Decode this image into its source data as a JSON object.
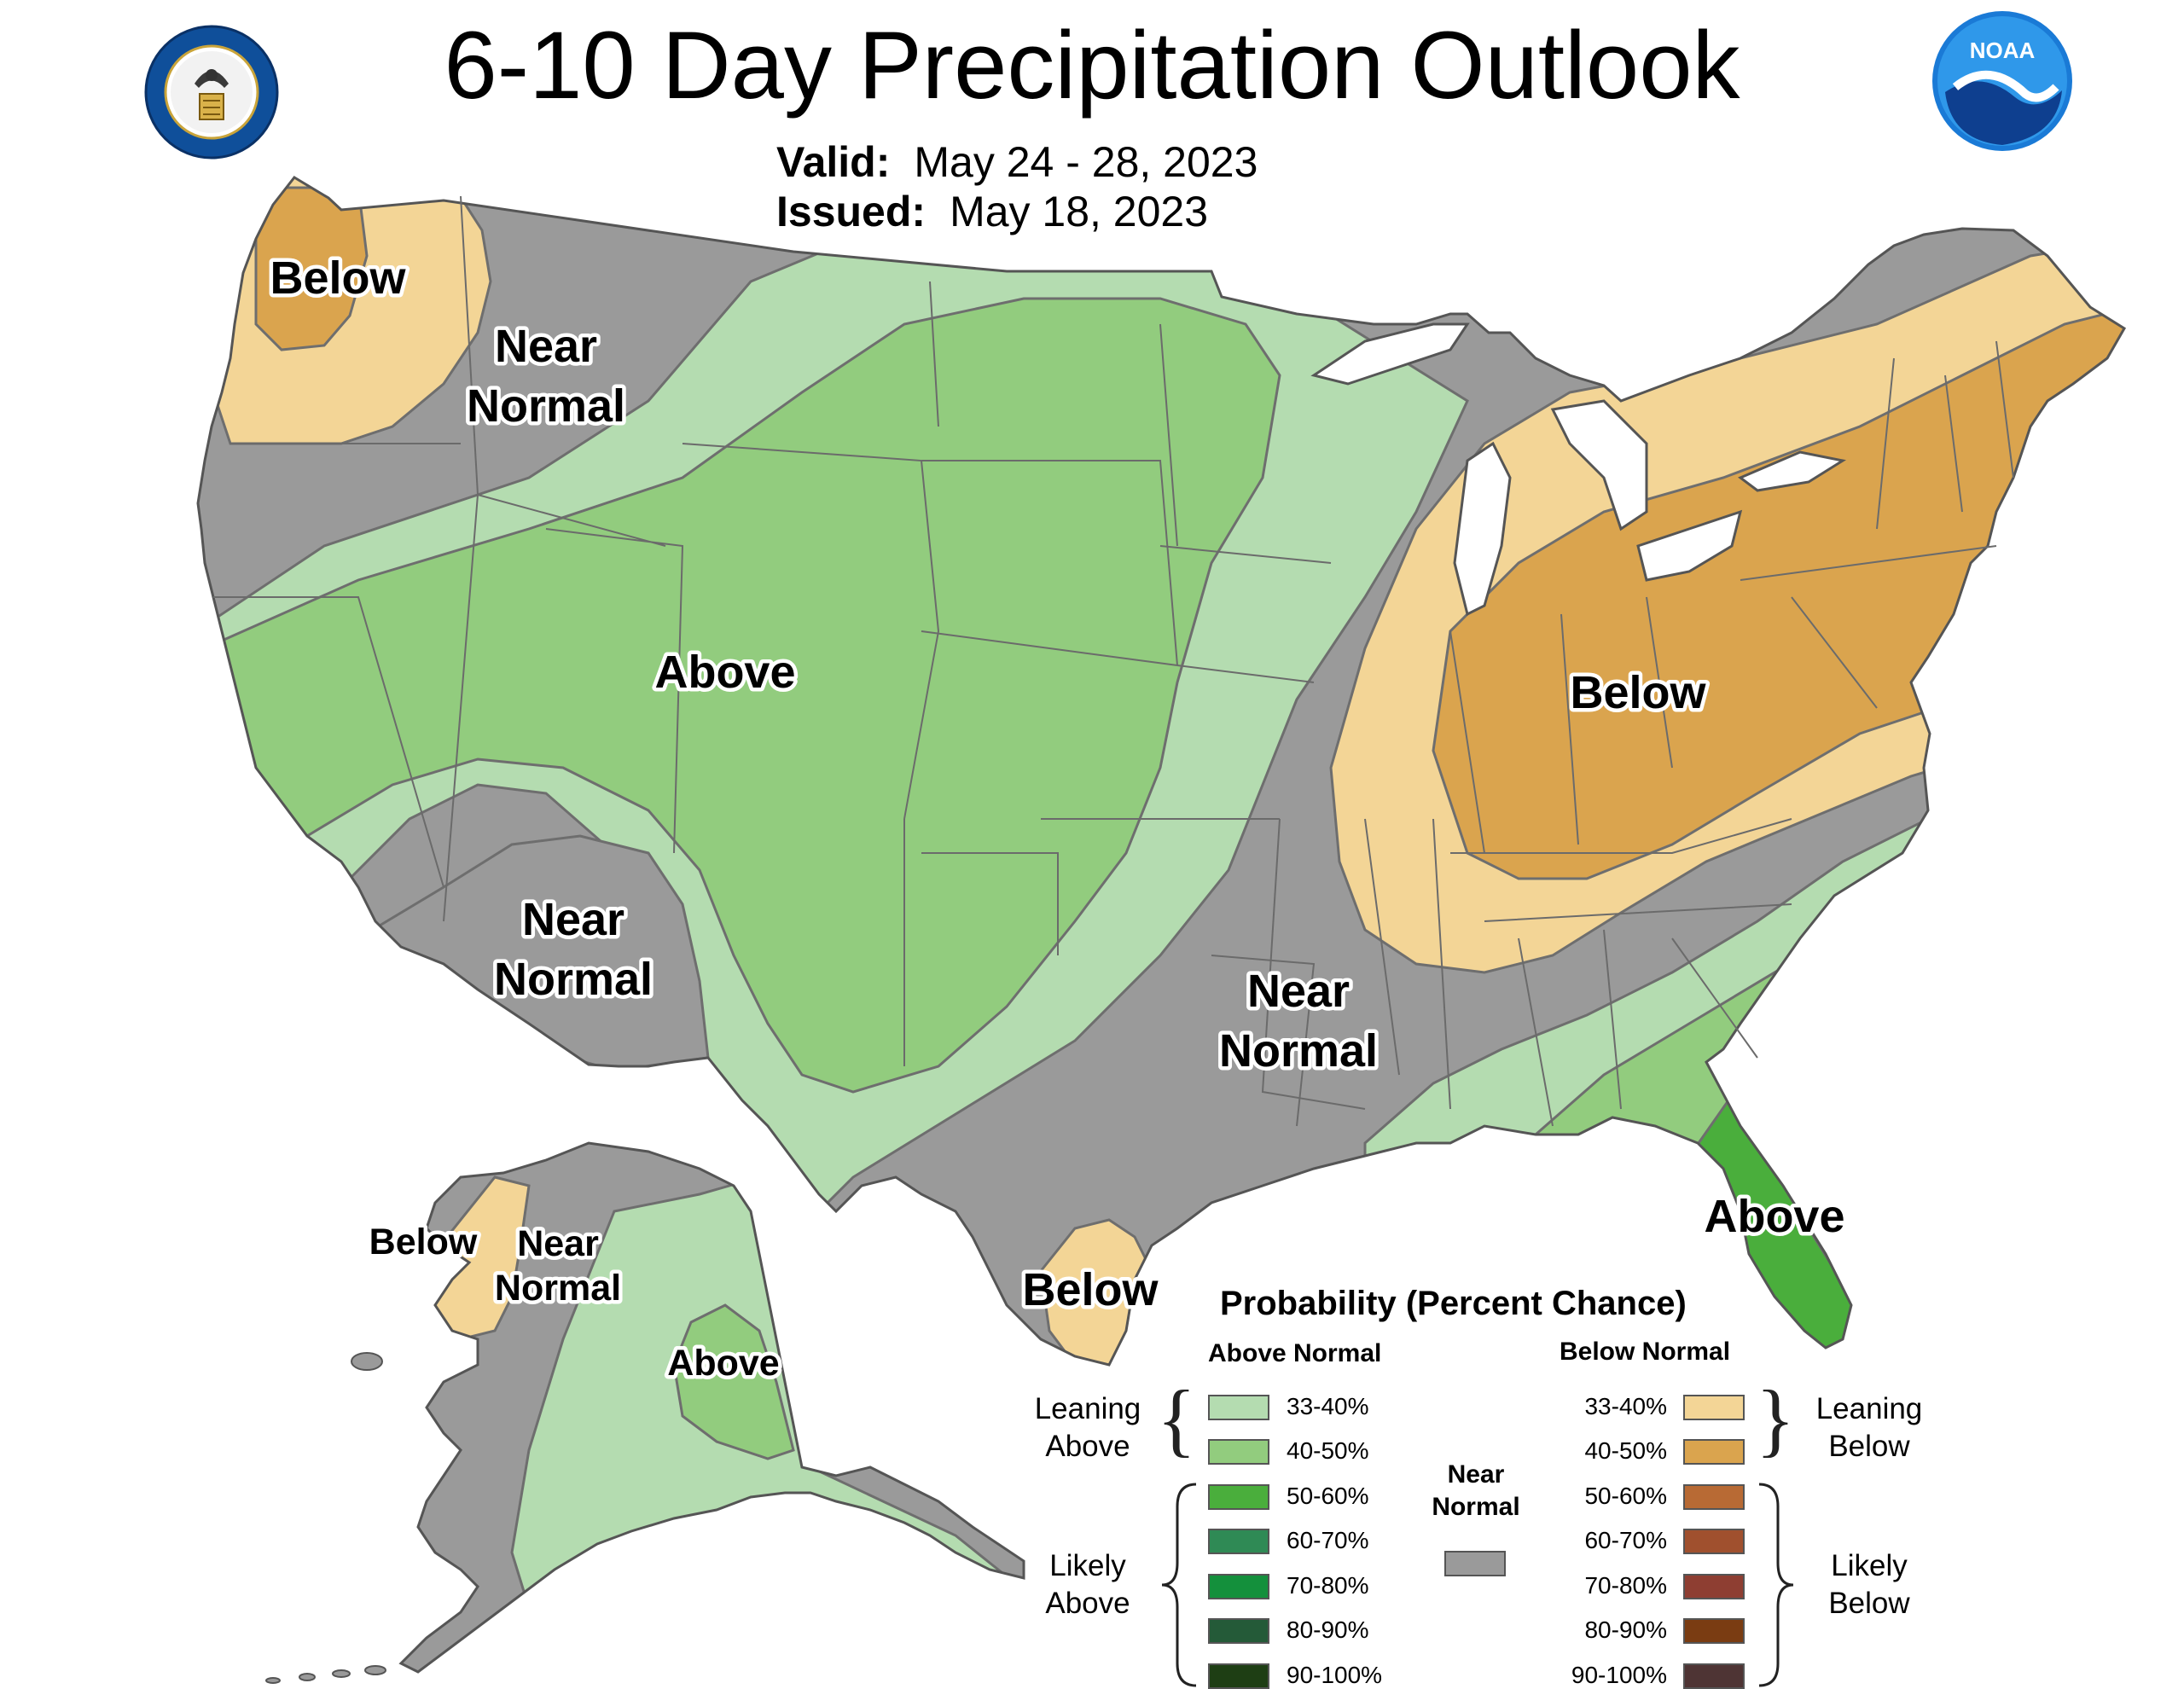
{
  "title": "6-10 Day Precipitation Outlook",
  "valid_label": "Valid:",
  "valid_dates": "May 24 - 28, 2023",
  "issued_label": "Issued:",
  "issued_date": "May 18, 2023",
  "logos": {
    "left": {
      "name": "department-of-commerce-seal",
      "text": "DEPARTMENT OF COMMERCE · UNITED STATES OF AMERICA"
    },
    "right": {
      "name": "noaa-logo",
      "text": "NOAA"
    }
  },
  "colors": {
    "leaning_above": "#b4dcb0",
    "above_40_50": "#92cc7e",
    "above_50_60": "#4aae3c",
    "near_normal": "#9a9a9a",
    "leaning_below": "#f3d596",
    "below_40_50": "#daa44e"
  },
  "map_labels": {
    "nw_below": "Below",
    "nw_near_1": "Near",
    "nw_near_2": "Normal",
    "west_above": "Above",
    "sw_near_1": "Near",
    "sw_near_2": "Normal",
    "south_near_1": "Near",
    "south_near_2": "Normal",
    "east_below": "Below",
    "texas_below": "Below",
    "florida_above": "Above",
    "ak_below": "Below",
    "ak_near_1": "Near",
    "ak_near_2": "Normal",
    "ak_above": "Above"
  },
  "legend": {
    "title": "Probability (Percent Chance)",
    "above_header": "Above Normal",
    "below_header": "Below Normal",
    "near_label_1": "Near",
    "near_label_2": "Normal",
    "leaning_above_1": "Leaning",
    "leaning_above_2": "Above",
    "likely_above_1": "Likely",
    "likely_above_2": "Above",
    "leaning_below_1": "Leaning",
    "leaning_below_2": "Below",
    "likely_below_1": "Likely",
    "likely_below_2": "Below",
    "above_items": [
      {
        "label": "33-40%",
        "color": "#b4dcb0"
      },
      {
        "label": "40-50%",
        "color": "#92cc7e"
      },
      {
        "label": "50-60%",
        "color": "#4aae3c"
      },
      {
        "label": "60-70%",
        "color": "#2f8a55"
      },
      {
        "label": "70-80%",
        "color": "#14903c"
      },
      {
        "label": "80-90%",
        "color": "#245a38"
      },
      {
        "label": "90-100%",
        "color": "#1e3e14"
      }
    ],
    "below_items": [
      {
        "label": "33-40%",
        "color": "#f3d596"
      },
      {
        "label": "40-50%",
        "color": "#daa44e"
      },
      {
        "label": "50-60%",
        "color": "#b86a34"
      },
      {
        "label": "60-70%",
        "color": "#a0502e"
      },
      {
        "label": "70-80%",
        "color": "#8e3e32"
      },
      {
        "label": "80-90%",
        "color": "#7a3c12"
      },
      {
        "label": "90-100%",
        "color": "#4e3434"
      }
    ],
    "near_color": "#9a9a9a"
  }
}
